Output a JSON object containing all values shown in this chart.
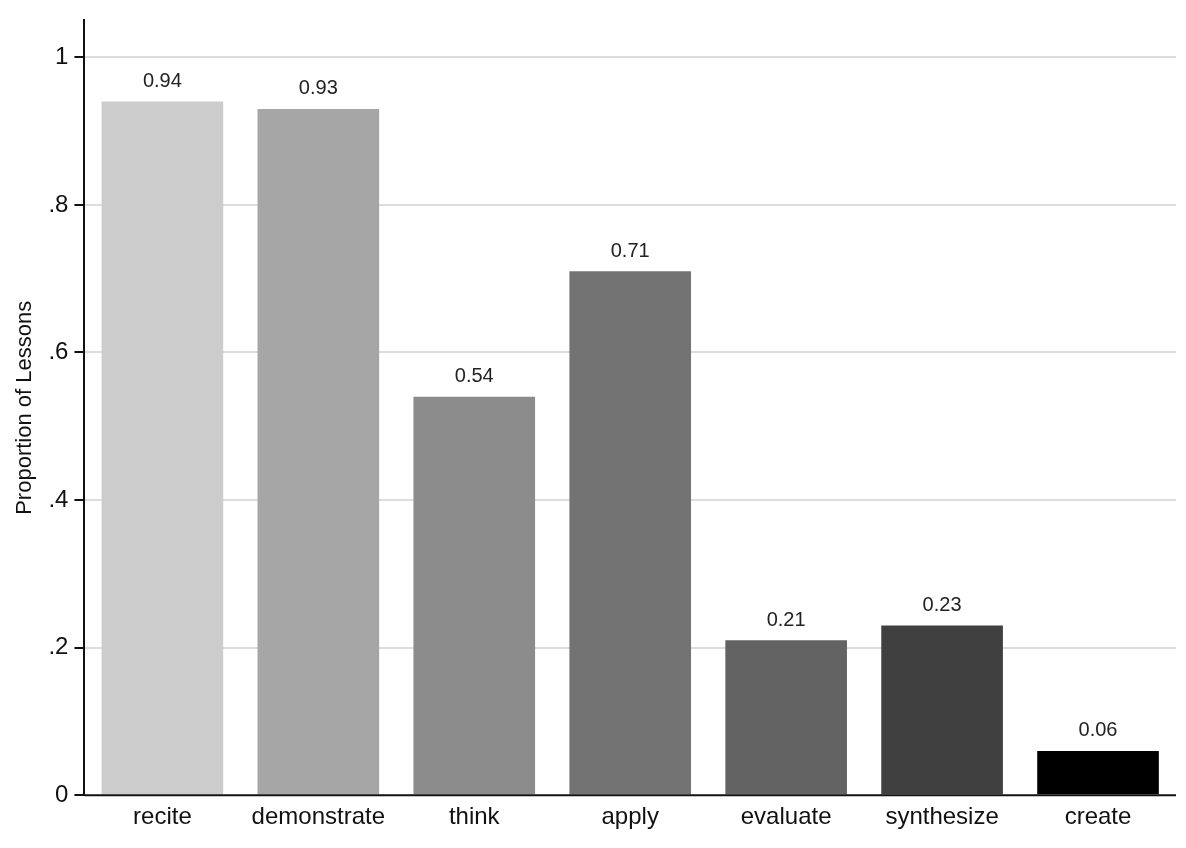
{
  "chart_data": {
    "type": "bar",
    "ylabel": "Proportion of Lessons",
    "categories": [
      "recite",
      "demonstrate",
      "think",
      "apply",
      "evaluate",
      "synthesize",
      "create"
    ],
    "values": [
      0.94,
      0.93,
      0.54,
      0.71,
      0.21,
      0.23,
      0.06
    ],
    "colors": [
      "#cccccc",
      "#a6a6a6",
      "#8c8c8c",
      "#737373",
      "#636363",
      "#404040",
      "#000000"
    ],
    "ylim": [
      0,
      1.05
    ],
    "yticks": [
      {
        "value": 0,
        "label": "0"
      },
      {
        "value": 0.2,
        "label": ".2"
      },
      {
        "value": 0.4,
        "label": ".4"
      },
      {
        "value": 0.6,
        "label": ".6"
      },
      {
        "value": 0.8,
        "label": ".8"
      },
      {
        "value": 1,
        "label": "1"
      }
    ],
    "grid": "y",
    "data_labels": true,
    "legend": false
  }
}
